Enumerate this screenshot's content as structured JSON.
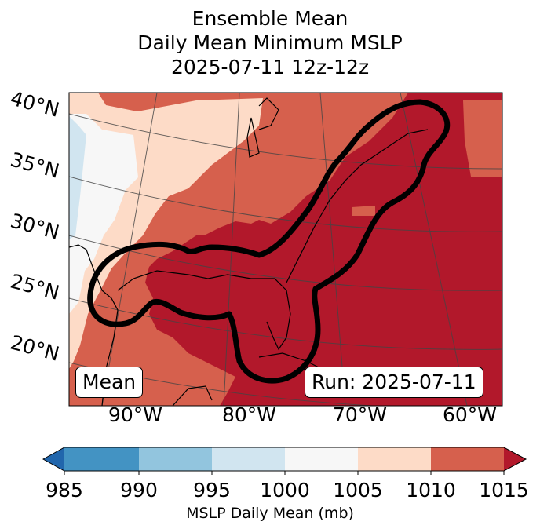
{
  "title": {
    "line1": "Ensemble Mean",
    "line2": "Daily Mean Minimum MSLP",
    "line3": "2025-07-11 12z-12z"
  },
  "map": {
    "lat_labels": [
      "40°N",
      "35°N",
      "30°N",
      "25°N",
      "20°N"
    ],
    "lon_labels": [
      "90°W",
      "80°W",
      "70°W",
      "60°W"
    ],
    "mean_label": "Mean",
    "run_label": "Run: 2025-07-11",
    "colors": {
      "lt985": "#2166ac",
      "b985_990": "#4393c3",
      "b990_995": "#92c5de",
      "b995_1000": "#d1e5f0",
      "b1000_1005": "#f7f7f7",
      "b1005_1010": "#fddbc7",
      "b1010_1015": "#d6604d",
      "gt1015": "#b2182b",
      "contour": "#000000"
    }
  },
  "colorbar": {
    "ticks": [
      "985",
      "990",
      "995",
      "1000",
      "1005",
      "1010",
      "1015"
    ],
    "label": "MSLP Daily Mean (mb)"
  }
}
